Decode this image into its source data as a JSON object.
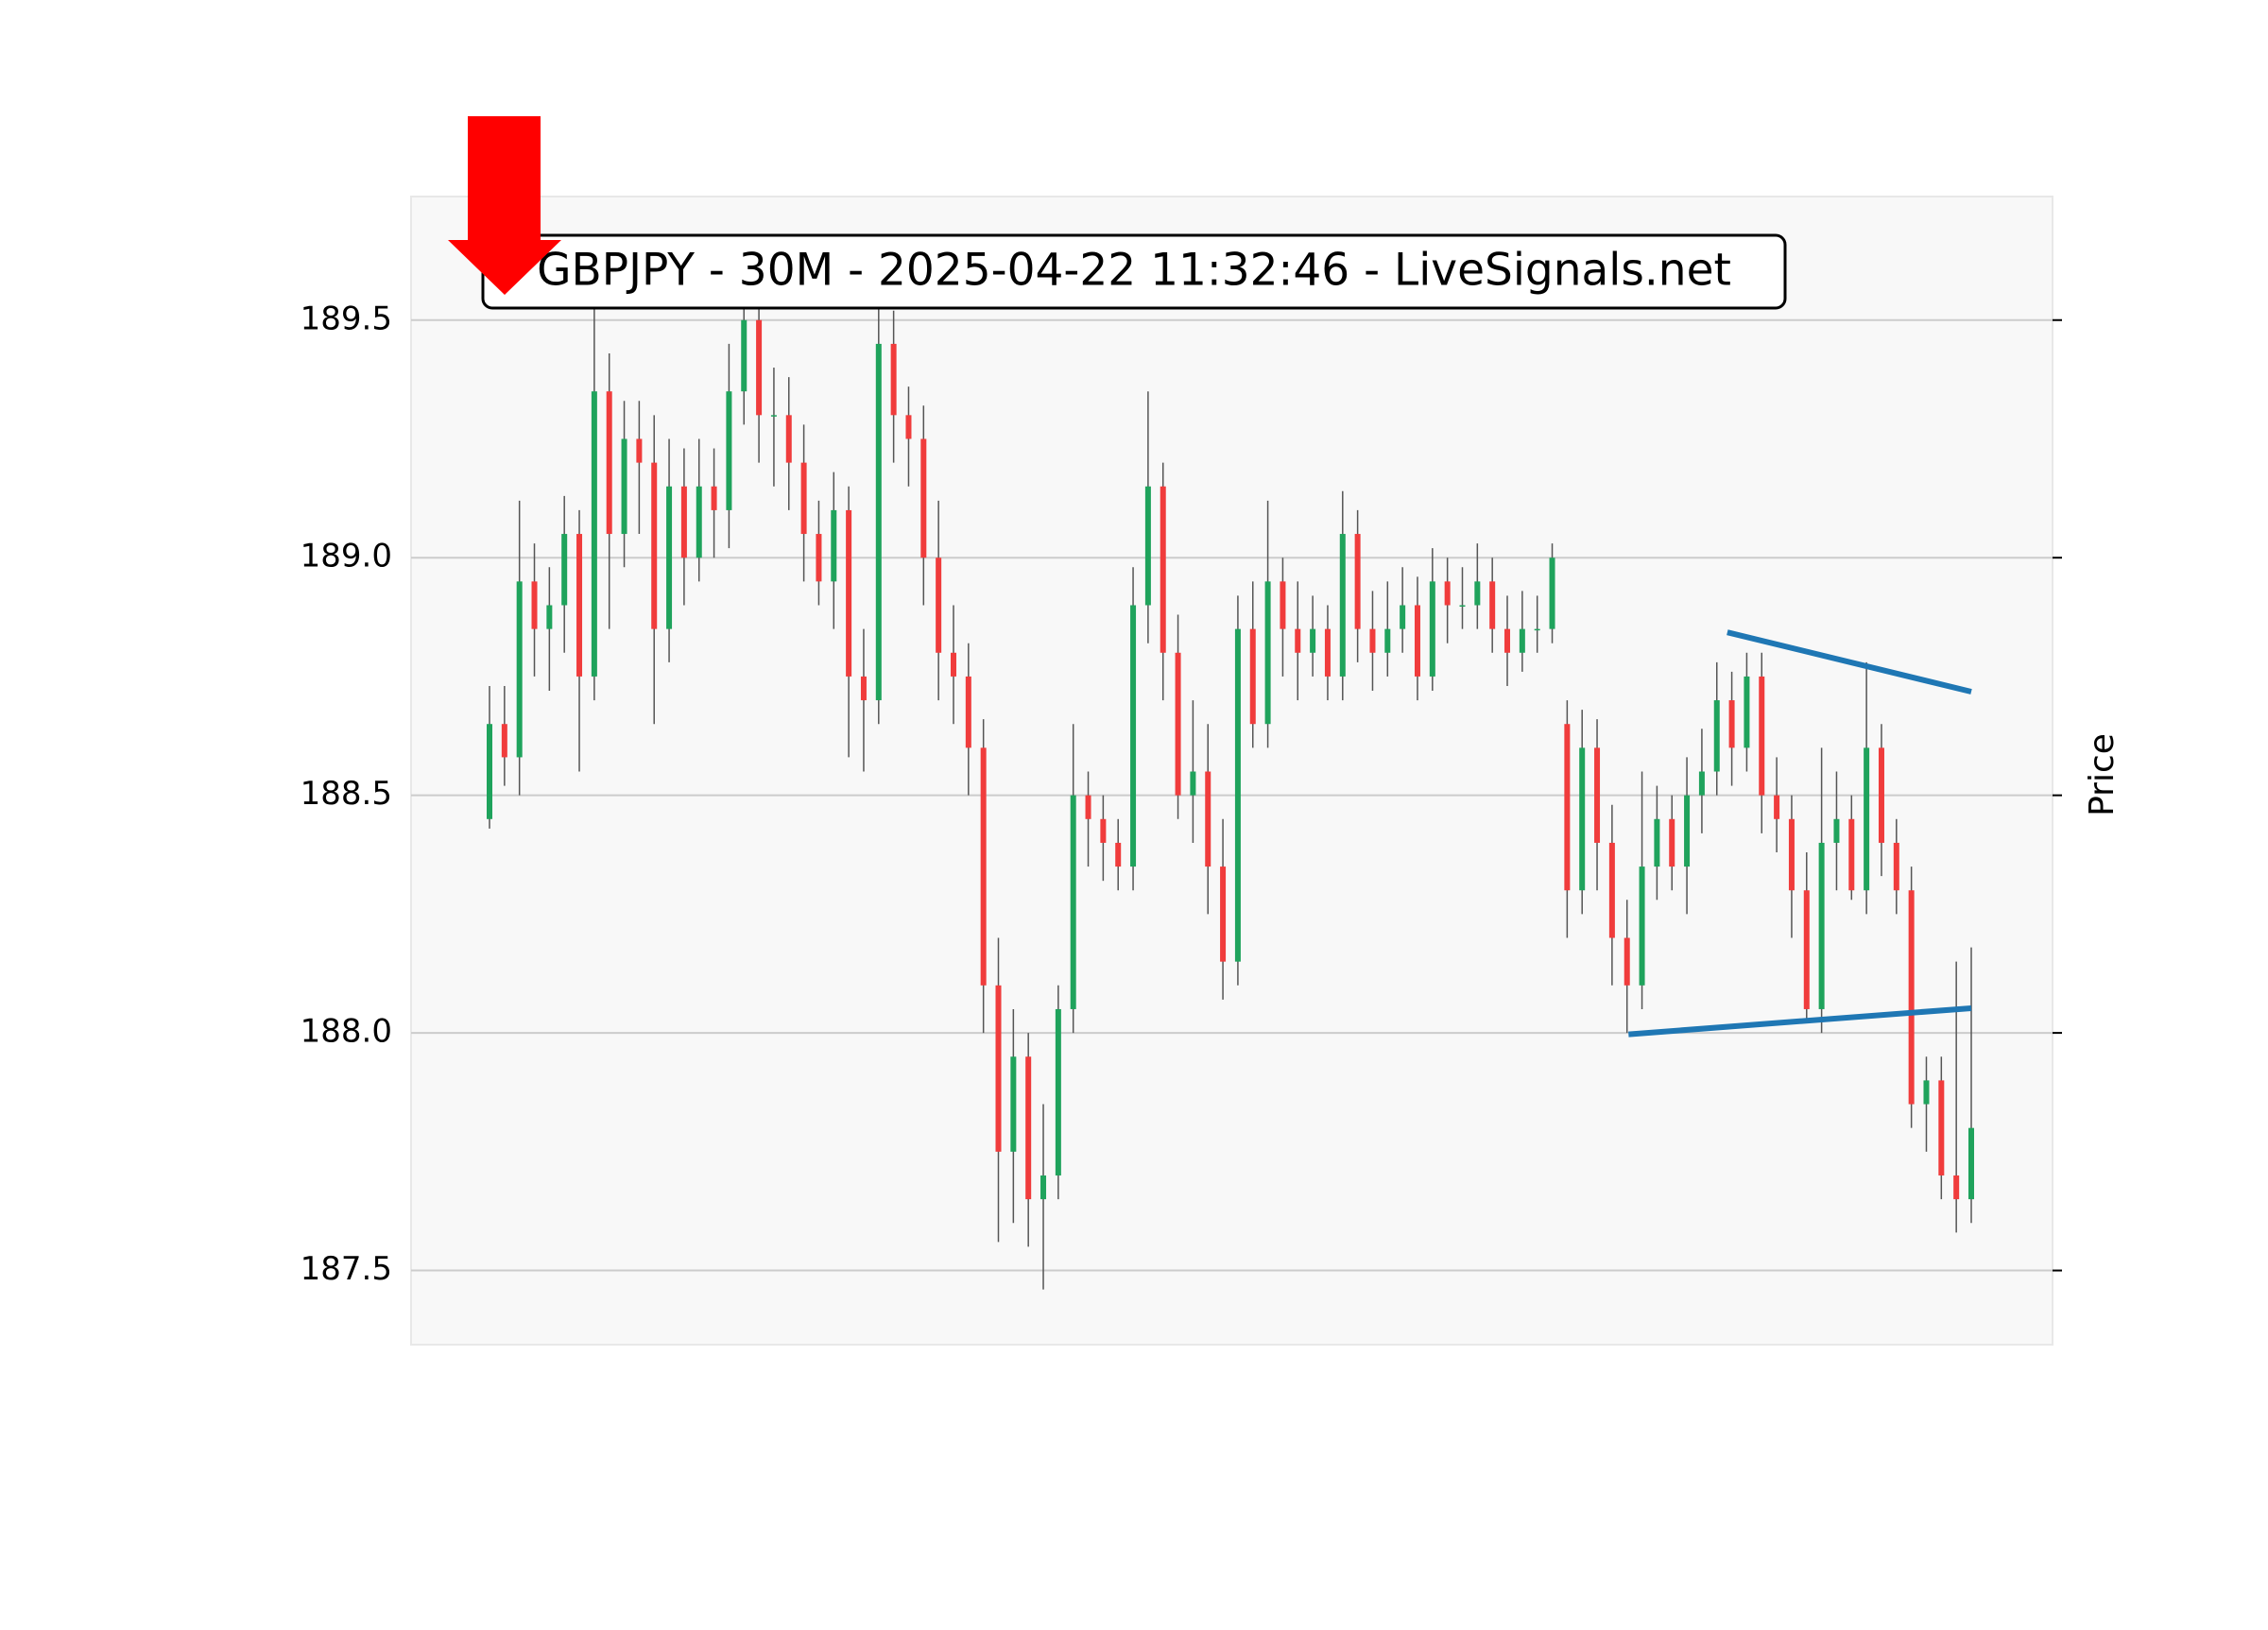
{
  "chart_data": {
    "type": "candlestick",
    "title": "GBPJPY - 30M - 2025-04-22 11:32:46 - LiveSignals.net",
    "ylabel": "Price",
    "ylim": [
      187.344,
      189.76
    ],
    "yticks": [
      187.5,
      {
        "value": 188,
        "label": "188.0"
      },
      188.5,
      {
        "value": 189,
        "label": "189.0"
      },
      189.5
    ],
    "grid": true,
    "up_color": "#1fa35c",
    "down_color": "#f03c3c",
    "wick_color": "#555555",
    "open": [
      188.45,
      188.65,
      188.58,
      188.95,
      188.85,
      188.9,
      189.05,
      188.75,
      189.35,
      189.05,
      189.25,
      189.2,
      188.85,
      189.15,
      189,
      189.15,
      189.1,
      189.35,
      189.5,
      189.3,
      189.3,
      189.2,
      189.05,
      188.95,
      189.1,
      188.75,
      188.7,
      189.45,
      189.3,
      189.25,
      189,
      188.8,
      188.75,
      188.6,
      188.1,
      187.75,
      187.95,
      187.65,
      187.7,
      188.05,
      188.5,
      188.45,
      188.4,
      188.35,
      188.9,
      189.15,
      188.8,
      188.5,
      188.55,
      188.35,
      188.15,
      188.85,
      188.65,
      188.95,
      188.85,
      188.8,
      188.85,
      188.75,
      189.05,
      188.85,
      188.8,
      188.85,
      188.9,
      188.75,
      188.95,
      188.9,
      188.9,
      188.95,
      188.85,
      188.8,
      188.85,
      188.85,
      188.65,
      188.3,
      188.6,
      188.4,
      188.2,
      188.1,
      188.35,
      188.45,
      188.35,
      188.5,
      188.55,
      188.7,
      188.6,
      188.75,
      188.5,
      188.45,
      188.3,
      188.05,
      188.4,
      188.45,
      188.3,
      188.6,
      188.4,
      188.3,
      187.85,
      187.9,
      187.7,
      187.65
    ],
    "high": [
      188.73,
      188.73,
      189.12,
      189.03,
      188.98,
      189.13,
      189.1,
      189.58,
      189.43,
      189.33,
      189.33,
      189.3,
      189.25,
      189.23,
      189.25,
      189.23,
      189.45,
      189.6,
      189.55,
      189.4,
      189.38,
      189.28,
      189.12,
      189.18,
      189.15,
      188.85,
      189.6,
      189.52,
      189.36,
      189.32,
      189.12,
      188.9,
      188.82,
      188.66,
      188.2,
      188.05,
      188,
      187.85,
      188.1,
      188.65,
      188.55,
      188.5,
      188.45,
      188.98,
      189.35,
      189.2,
      188.88,
      188.7,
      188.65,
      188.45,
      188.92,
      188.95,
      189.12,
      189,
      188.95,
      188.92,
      188.9,
      189.14,
      189.1,
      188.93,
      188.95,
      188.98,
      188.96,
      189.02,
      189,
      188.98,
      189.03,
      189,
      188.92,
      188.93,
      188.92,
      189.03,
      188.7,
      188.68,
      188.66,
      188.48,
      188.28,
      188.55,
      188.52,
      188.5,
      188.58,
      188.64,
      188.78,
      188.76,
      188.8,
      188.8,
      188.58,
      188.5,
      188.38,
      188.6,
      188.55,
      188.5,
      188.78,
      188.65,
      188.45,
      188.35,
      187.95,
      187.95,
      188.15,
      188.18
    ],
    "low": [
      188.43,
      188.52,
      188.5,
      188.75,
      188.72,
      188.8,
      188.55,
      188.7,
      188.85,
      188.98,
      189.05,
      188.65,
      188.78,
      188.9,
      188.95,
      189,
      189.02,
      189.28,
      189.2,
      189.15,
      189.1,
      188.95,
      188.9,
      188.85,
      188.58,
      188.55,
      188.65,
      189.2,
      189.15,
      188.9,
      188.7,
      188.65,
      188.5,
      188,
      187.56,
      187.6,
      187.55,
      187.46,
      187.65,
      188,
      188.35,
      188.32,
      188.3,
      188.3,
      188.82,
      188.7,
      188.45,
      188.4,
      188.25,
      188.07,
      188.1,
      188.6,
      188.6,
      188.75,
      188.7,
      188.75,
      188.7,
      188.7,
      188.78,
      188.72,
      188.75,
      188.8,
      188.7,
      188.72,
      188.82,
      188.85,
      188.85,
      188.8,
      188.73,
      188.76,
      188.8,
      188.82,
      188.2,
      188.25,
      188.3,
      188.1,
      188,
      188.05,
      188.28,
      188.3,
      188.25,
      188.42,
      188.5,
      188.52,
      188.55,
      188.42,
      188.38,
      188.2,
      188.03,
      188,
      188.3,
      188.28,
      188.25,
      188.33,
      188.25,
      187.8,
      187.75,
      187.65,
      187.58,
      187.6
    ],
    "close": [
      188.65,
      188.58,
      188.95,
      188.85,
      188.9,
      189.05,
      188.75,
      189.35,
      189.05,
      189.25,
      189.2,
      188.85,
      189.15,
      189,
      189.15,
      189.1,
      189.35,
      189.5,
      189.3,
      189.3,
      189.2,
      189.05,
      188.95,
      189.1,
      188.75,
      188.7,
      189.45,
      189.3,
      189.25,
      189,
      188.8,
      188.75,
      188.6,
      188.1,
      187.75,
      187.95,
      187.65,
      187.7,
      188.05,
      188.5,
      188.45,
      188.4,
      188.35,
      188.9,
      189.15,
      188.8,
      188.5,
      188.55,
      188.35,
      188.15,
      188.85,
      188.65,
      188.95,
      188.85,
      188.8,
      188.85,
      188.75,
      189.05,
      188.85,
      188.8,
      188.85,
      188.9,
      188.75,
      188.95,
      188.9,
      188.9,
      188.95,
      188.85,
      188.8,
      188.85,
      188.85,
      189,
      188.3,
      188.6,
      188.4,
      188.2,
      188.1,
      188.35,
      188.45,
      188.35,
      188.5,
      188.55,
      188.7,
      188.6,
      188.75,
      188.5,
      188.45,
      188.3,
      188.05,
      188.4,
      188.45,
      188.3,
      188.6,
      188.4,
      188.3,
      187.85,
      187.9,
      187.7,
      187.65,
      187.8
    ],
    "trendline_color": "#1f77b4",
    "trendlines": [
      {
        "x": [
          82.7,
          99
        ],
        "y": [
          188.843,
          188.718
        ]
      },
      {
        "x": [
          76.1,
          99
        ],
        "y": [
          187.997,
          188.052
        ]
      }
    ]
  }
}
